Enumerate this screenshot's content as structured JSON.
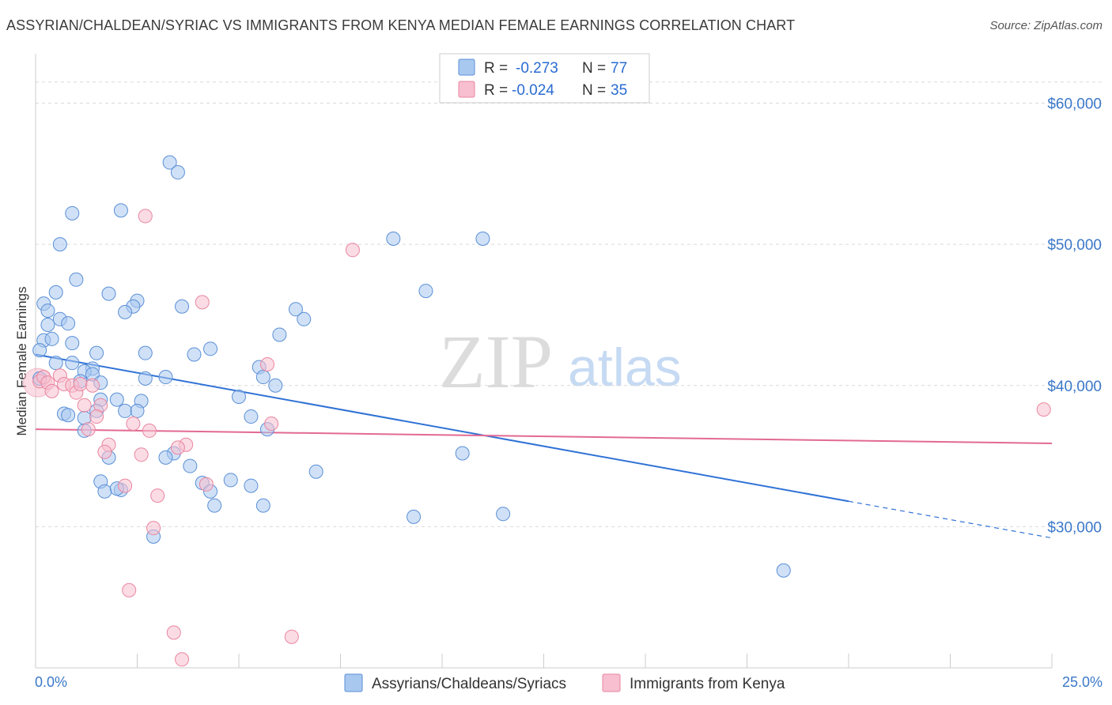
{
  "title": "ASSYRIAN/CHALDEAN/SYRIAC VS IMMIGRANTS FROM KENYA MEDIAN FEMALE EARNINGS CORRELATION CHART",
  "source": "Source: ZipAtlas.com",
  "colors": {
    "blue_fill": "#a9c8f0",
    "blue_stroke": "#5a8fd6",
    "blue_line": "#2f72d6",
    "pink_fill": "#f7bfd0",
    "pink_stroke": "#e9869f",
    "pink_line": "#e26a93",
    "axis_text": "#3b78c9",
    "grid": "#d9d9d9"
  },
  "legend": {
    "r_label": "R =",
    "n_label": "N =",
    "rows": [
      {
        "r": "-0.273",
        "n": "77"
      },
      {
        "r": "-0.024",
        "n": "35"
      }
    ]
  },
  "watermark": {
    "zip": "ZIP",
    "atlas": "atlas"
  },
  "chart_data": {
    "type": "scatter",
    "title": "ASSYRIAN/CHALDEAN/SYRIAC VS IMMIGRANTS FROM KENYA MEDIAN FEMALE EARNINGS CORRELATION CHART",
    "xlabel": "",
    "ylabel": "Median Female Earnings",
    "xlim": [
      0,
      25
    ],
    "ylim": [
      20000,
      63500
    ],
    "x_tick_labels": [
      "0.0%",
      "25.0%"
    ],
    "y_ticks": [
      30000,
      40000,
      50000,
      60000
    ],
    "y_tick_labels": [
      "$30,000",
      "$40,000",
      "$50,000",
      "$60,000"
    ],
    "grid": true,
    "series": [
      {
        "name": "Assyrians/Chaldeans/Syriacs",
        "color": "#a9c8f0",
        "trend": {
          "x0": 0,
          "y0": 42200,
          "x1": 20,
          "y1": 31800,
          "dashed_to_x": 25,
          "dashed_to_y": 29200
        },
        "points": [
          [
            3.3,
            55800
          ],
          [
            3.5,
            55100
          ],
          [
            0.9,
            52200
          ],
          [
            2.1,
            52400
          ],
          [
            0.6,
            50000
          ],
          [
            8.8,
            50400
          ],
          [
            11.0,
            50400
          ],
          [
            1.0,
            47500
          ],
          [
            0.5,
            46600
          ],
          [
            1.8,
            46500
          ],
          [
            9.6,
            46700
          ],
          [
            0.2,
            45800
          ],
          [
            2.5,
            46000
          ],
          [
            2.4,
            45600
          ],
          [
            0.3,
            45300
          ],
          [
            3.6,
            45600
          ],
          [
            6.4,
            45400
          ],
          [
            2.2,
            45200
          ],
          [
            0.6,
            44700
          ],
          [
            6.6,
            44700
          ],
          [
            0.8,
            44400
          ],
          [
            0.3,
            44300
          ],
          [
            6.0,
            43600
          ],
          [
            0.2,
            43200
          ],
          [
            0.4,
            43300
          ],
          [
            0.9,
            43000
          ],
          [
            4.3,
            42600
          ],
          [
            0.1,
            42500
          ],
          [
            1.5,
            42300
          ],
          [
            2.7,
            42300
          ],
          [
            3.9,
            42200
          ],
          [
            0.5,
            41600
          ],
          [
            0.9,
            41600
          ],
          [
            5.5,
            41300
          ],
          [
            1.4,
            41200
          ],
          [
            1.2,
            41000
          ],
          [
            1.4,
            40800
          ],
          [
            3.2,
            40600
          ],
          [
            2.7,
            40500
          ],
          [
            5.6,
            40600
          ],
          [
            1.1,
            40300
          ],
          [
            1.6,
            40200
          ],
          [
            5.9,
            40000
          ],
          [
            0.1,
            40500
          ],
          [
            5.0,
            39200
          ],
          [
            1.6,
            39000
          ],
          [
            2.0,
            39000
          ],
          [
            2.6,
            38900
          ],
          [
            0.7,
            38000
          ],
          [
            0.8,
            37900
          ],
          [
            1.5,
            38200
          ],
          [
            2.2,
            38200
          ],
          [
            2.5,
            38200
          ],
          [
            5.3,
            37800
          ],
          [
            1.2,
            37700
          ],
          [
            1.2,
            36800
          ],
          [
            5.7,
            36900
          ],
          [
            10.5,
            35200
          ],
          [
            3.4,
            35200
          ],
          [
            1.8,
            34900
          ],
          [
            3.2,
            34900
          ],
          [
            3.8,
            34300
          ],
          [
            6.9,
            33900
          ],
          [
            1.6,
            33200
          ],
          [
            4.8,
            33300
          ],
          [
            4.1,
            33100
          ],
          [
            5.3,
            32900
          ],
          [
            1.7,
            32500
          ],
          [
            2.1,
            32600
          ],
          [
            2.0,
            32700
          ],
          [
            4.3,
            32500
          ],
          [
            4.4,
            31500
          ],
          [
            5.6,
            31500
          ],
          [
            9.3,
            30700
          ],
          [
            11.5,
            30900
          ],
          [
            2.9,
            29300
          ],
          [
            18.4,
            26900
          ]
        ]
      },
      {
        "name": "Immigrants from Kenya",
        "color": "#f7bfd0",
        "trend": {
          "x0": 0,
          "y0": 36900,
          "x1": 25,
          "y1": 35900
        },
        "points": [
          [
            2.7,
            52000
          ],
          [
            7.8,
            49600
          ],
          [
            4.1,
            45900
          ],
          [
            5.7,
            41500
          ],
          [
            0.1,
            40300
          ],
          [
            0.2,
            40600
          ],
          [
            0.3,
            40200
          ],
          [
            0.4,
            39600
          ],
          [
            0.6,
            40700
          ],
          [
            0.7,
            40100
          ],
          [
            0.9,
            40000
          ],
          [
            1.0,
            39500
          ],
          [
            1.1,
            40100
          ],
          [
            1.4,
            40000
          ],
          [
            1.2,
            38600
          ],
          [
            1.6,
            38600
          ],
          [
            1.5,
            37800
          ],
          [
            2.4,
            37300
          ],
          [
            5.8,
            37300
          ],
          [
            2.8,
            36800
          ],
          [
            1.3,
            36900
          ],
          [
            1.8,
            35800
          ],
          [
            1.7,
            35300
          ],
          [
            3.7,
            35800
          ],
          [
            3.5,
            35600
          ],
          [
            2.6,
            35100
          ],
          [
            2.2,
            32900
          ],
          [
            4.2,
            33000
          ],
          [
            3.0,
            32200
          ],
          [
            2.9,
            29900
          ],
          [
            2.3,
            25500
          ],
          [
            3.4,
            22500
          ],
          [
            6.3,
            22200
          ],
          [
            3.6,
            20600
          ],
          [
            24.8,
            38300
          ]
        ]
      }
    ]
  }
}
